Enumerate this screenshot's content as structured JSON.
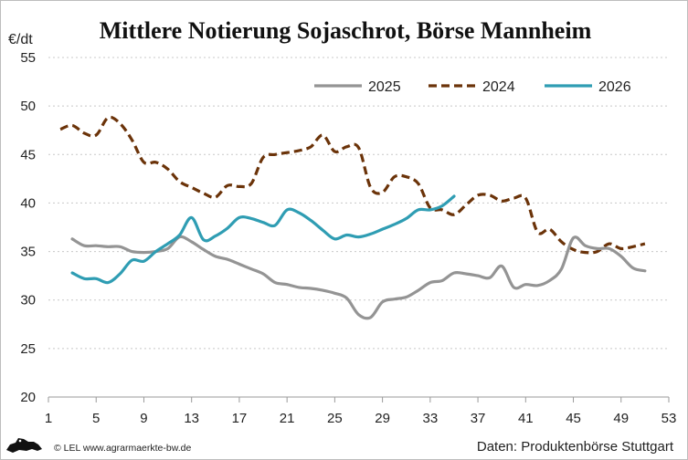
{
  "footer": {
    "credit": "© LEL www.agrarmaerkte-bw.de",
    "source": "Daten: Produktenbörse Stuttgart"
  },
  "chart_data": {
    "type": "line",
    "title": "Mittlere Notierung Sojaschrot, Börse Mannheim",
    "ylabel": "€/dt",
    "xlabel": "",
    "xlim": [
      1,
      53
    ],
    "ylim": [
      20,
      55
    ],
    "xticks": [
      1,
      5,
      9,
      13,
      17,
      21,
      25,
      29,
      33,
      37,
      41,
      45,
      49,
      53
    ],
    "yticks": [
      20,
      25,
      30,
      35,
      40,
      45,
      50,
      55
    ],
    "grid": "horizontal dashed",
    "legend_position": "top-right",
    "series": [
      {
        "name": "2025",
        "color": "#949494",
        "dash": "solid",
        "points": [
          [
            3,
            36.3
          ],
          [
            4,
            35.6
          ],
          [
            5,
            35.6
          ],
          [
            6,
            35.5
          ],
          [
            7,
            35.5
          ],
          [
            8,
            35.0
          ],
          [
            9,
            34.9
          ],
          [
            10,
            35.0
          ],
          [
            11,
            35.3
          ],
          [
            12,
            36.5
          ],
          [
            13,
            36.0
          ],
          [
            14,
            35.2
          ],
          [
            15,
            34.5
          ],
          [
            16,
            34.2
          ],
          [
            17,
            33.7
          ],
          [
            18,
            33.2
          ],
          [
            19,
            32.7
          ],
          [
            20,
            31.8
          ],
          [
            21,
            31.6
          ],
          [
            22,
            31.3
          ],
          [
            23,
            31.2
          ],
          [
            24,
            31.0
          ],
          [
            25,
            30.7
          ],
          [
            26,
            30.2
          ],
          [
            27,
            28.5
          ],
          [
            28,
            28.2
          ],
          [
            29,
            29.8
          ],
          [
            30,
            30.1
          ],
          [
            31,
            30.3
          ],
          [
            32,
            31.0
          ],
          [
            33,
            31.8
          ],
          [
            34,
            32.0
          ],
          [
            35,
            32.8
          ],
          [
            36,
            32.7
          ],
          [
            37,
            32.5
          ],
          [
            38,
            32.3
          ],
          [
            39,
            33.5
          ],
          [
            40,
            31.3
          ],
          [
            41,
            31.6
          ],
          [
            42,
            31.5
          ],
          [
            43,
            32.0
          ],
          [
            44,
            33.2
          ],
          [
            45,
            36.4
          ],
          [
            46,
            35.6
          ],
          [
            47,
            35.3
          ],
          [
            48,
            35.3
          ],
          [
            49,
            34.5
          ],
          [
            50,
            33.3
          ],
          [
            51,
            33.0
          ]
        ]
      },
      {
        "name": "2024",
        "color": "#6b3309",
        "dash": "dashed",
        "points": [
          [
            2,
            47.6
          ],
          [
            3,
            48.0
          ],
          [
            4,
            47.2
          ],
          [
            5,
            47.0
          ],
          [
            6,
            48.8
          ],
          [
            7,
            48.2
          ],
          [
            8,
            46.5
          ],
          [
            9,
            44.2
          ],
          [
            10,
            44.2
          ],
          [
            11,
            43.5
          ],
          [
            12,
            42.2
          ],
          [
            13,
            41.6
          ],
          [
            14,
            41.0
          ],
          [
            15,
            40.6
          ],
          [
            16,
            41.8
          ],
          [
            17,
            41.7
          ],
          [
            18,
            42.0
          ],
          [
            19,
            44.7
          ],
          [
            20,
            45.0
          ],
          [
            21,
            45.2
          ],
          [
            22,
            45.4
          ],
          [
            23,
            45.8
          ],
          [
            24,
            47.0
          ],
          [
            25,
            45.3
          ],
          [
            26,
            45.8
          ],
          [
            27,
            45.7
          ],
          [
            28,
            41.6
          ],
          [
            29,
            41.1
          ],
          [
            30,
            42.7
          ],
          [
            31,
            42.7
          ],
          [
            32,
            42.0
          ],
          [
            33,
            39.5
          ],
          [
            34,
            39.3
          ],
          [
            35,
            38.8
          ],
          [
            36,
            39.8
          ],
          [
            37,
            40.8
          ],
          [
            38,
            40.8
          ],
          [
            39,
            40.2
          ],
          [
            40,
            40.5
          ],
          [
            41,
            40.5
          ],
          [
            42,
            37.0
          ],
          [
            43,
            37.3
          ],
          [
            44,
            36.0
          ],
          [
            45,
            35.2
          ],
          [
            46,
            34.9
          ],
          [
            47,
            35.0
          ],
          [
            48,
            35.8
          ],
          [
            49,
            35.3
          ],
          [
            50,
            35.5
          ],
          [
            51,
            35.8
          ]
        ]
      },
      {
        "name": "2026",
        "color": "#2f9db3",
        "dash": "solid",
        "points": [
          [
            3,
            32.8
          ],
          [
            4,
            32.2
          ],
          [
            5,
            32.2
          ],
          [
            6,
            31.8
          ],
          [
            7,
            32.7
          ],
          [
            8,
            34.1
          ],
          [
            9,
            34.0
          ],
          [
            10,
            35.0
          ],
          [
            11,
            35.8
          ],
          [
            12,
            36.7
          ],
          [
            13,
            38.5
          ],
          [
            14,
            36.2
          ],
          [
            15,
            36.6
          ],
          [
            16,
            37.4
          ],
          [
            17,
            38.5
          ],
          [
            18,
            38.4
          ],
          [
            19,
            38.0
          ],
          [
            20,
            37.7
          ],
          [
            21,
            39.3
          ],
          [
            22,
            39.0
          ],
          [
            23,
            38.2
          ],
          [
            24,
            37.2
          ],
          [
            25,
            36.3
          ],
          [
            26,
            36.7
          ],
          [
            27,
            36.5
          ],
          [
            28,
            36.8
          ],
          [
            29,
            37.3
          ],
          [
            30,
            37.8
          ],
          [
            31,
            38.4
          ],
          [
            32,
            39.3
          ],
          [
            33,
            39.3
          ],
          [
            34,
            39.7
          ],
          [
            35,
            40.7
          ]
        ]
      }
    ]
  }
}
